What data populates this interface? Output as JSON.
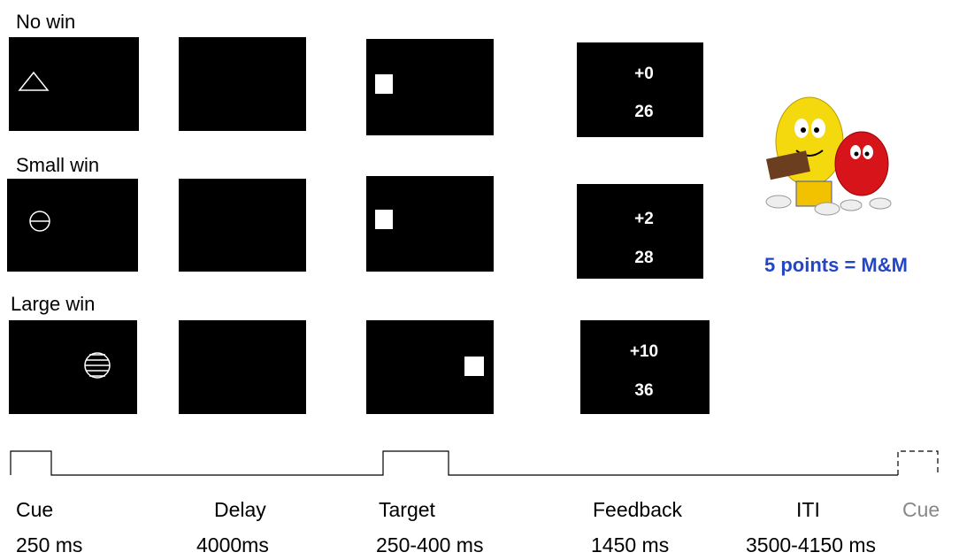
{
  "conditions": [
    {
      "label": "No win",
      "feedback_gain": "+0",
      "feedback_total": "26"
    },
    {
      "label": "Small win",
      "feedback_gain": "+2",
      "feedback_total": "28"
    },
    {
      "label": "Large win",
      "feedback_gain": "+10",
      "feedback_total": "36"
    }
  ],
  "reward_note": "5 points = M&M",
  "timeline": {
    "phases": [
      {
        "name": "Cue",
        "duration": "250 ms"
      },
      {
        "name": "Delay",
        "duration": "4000ms"
      },
      {
        "name": "Target",
        "duration": "250-400 ms"
      },
      {
        "name": "Feedback",
        "duration": "1450 ms"
      },
      {
        "name": "ITI",
        "duration": "3500-4150 ms"
      }
    ],
    "next": "Cue"
  }
}
